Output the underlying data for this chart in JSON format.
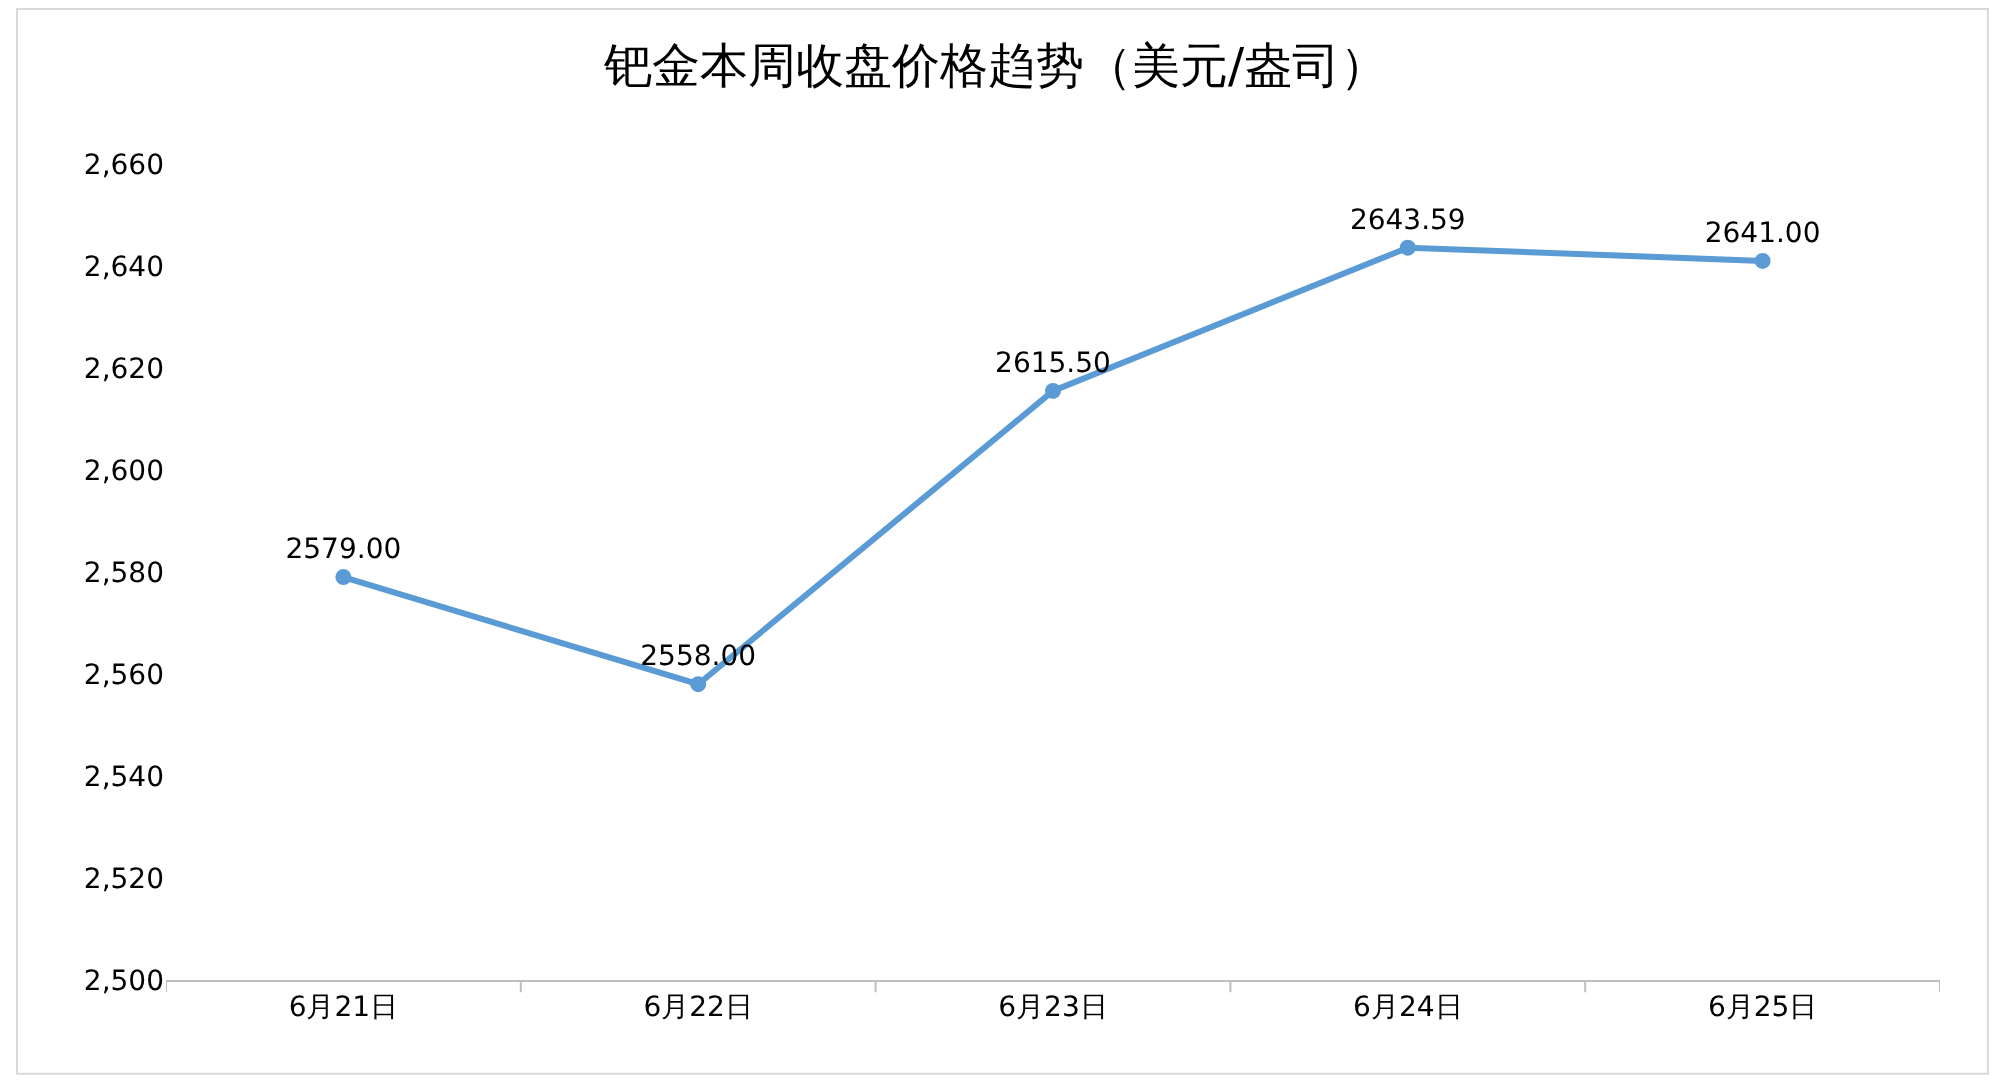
{
  "chart_data": {
    "type": "line",
    "title": "钯金本周收盘价格趋势（美元/盎司）",
    "categories": [
      "6月21日",
      "6月22日",
      "6月23日",
      "6月24日",
      "6月25日"
    ],
    "series": [
      {
        "color": "#5b9bd5",
        "values": [
          2579.0,
          2558.0,
          2615.5,
          2643.59,
          2641.0
        ],
        "value_labels": [
          "2579.00",
          "2558.00",
          "2615.50",
          "2643.59",
          "2641.00"
        ]
      }
    ],
    "ylim": [
      2500,
      2660
    ],
    "yticks": [
      {
        "value": 2500,
        "label": "2,500"
      },
      {
        "value": 2520,
        "label": "2,520"
      },
      {
        "value": 2540,
        "label": "2,540"
      },
      {
        "value": 2560,
        "label": "2,560"
      },
      {
        "value": 2580,
        "label": "2,580"
      },
      {
        "value": 2600,
        "label": "2,600"
      },
      {
        "value": 2620,
        "label": "2,620"
      },
      {
        "value": 2640,
        "label": "2,640"
      },
      {
        "value": 2660,
        "label": "2,660"
      }
    ],
    "legend": false,
    "marker": "circle",
    "line_style": "solid"
  }
}
